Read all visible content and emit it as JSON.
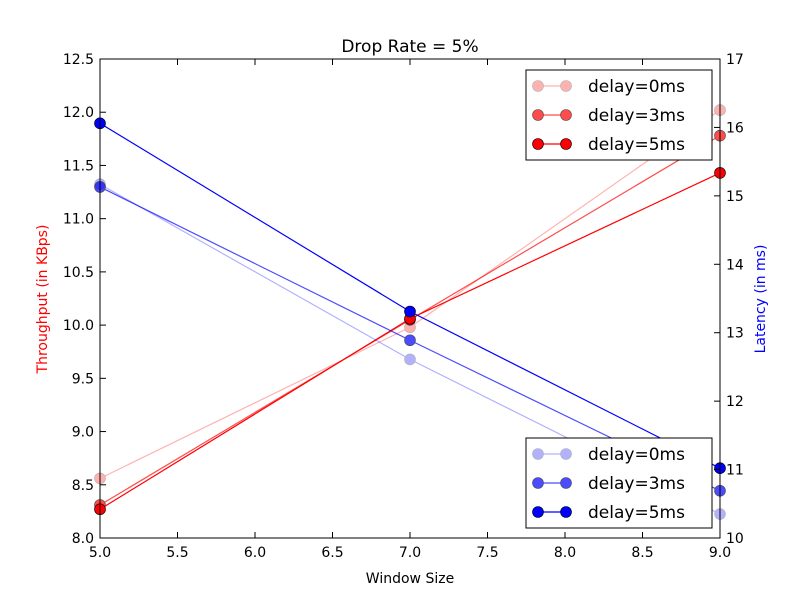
{
  "chart_data": {
    "type": "line",
    "title": "Drop Rate = 5%",
    "xlabel": "Window Size",
    "ylabel_left": "Throughput (in KBps)",
    "ylabel_right": "Latency (in ms)",
    "xlim": [
      5.0,
      9.0
    ],
    "ylim_left": [
      8.0,
      12.5
    ],
    "ylim_right": [
      10,
      17
    ],
    "xticks": [
      "5.0",
      "5.5",
      "6.0",
      "6.5",
      "7.0",
      "7.5",
      "8.0",
      "8.5",
      "9.0"
    ],
    "yticks_left": [
      "8.0",
      "8.5",
      "9.0",
      "9.5",
      "10.0",
      "10.5",
      "11.0",
      "11.5",
      "12.0",
      "12.5"
    ],
    "yticks_right": [
      "10",
      "11",
      "12",
      "13",
      "14",
      "15",
      "16",
      "17"
    ],
    "x": [
      5,
      7,
      9
    ],
    "throughput_series": [
      {
        "name": "delay=0ms",
        "values": [
          8.56,
          9.98,
          12.02
        ],
        "color": "#ff0000",
        "opacity": 0.3
      },
      {
        "name": "delay=3ms",
        "values": [
          8.31,
          10.05,
          11.78
        ],
        "color": "#ff0000",
        "opacity": 0.7
      },
      {
        "name": "delay=5ms",
        "values": [
          8.27,
          10.06,
          11.43
        ],
        "color": "#ff0000",
        "opacity": 1.0
      }
    ],
    "latency_series": [
      {
        "name": "delay=0ms",
        "values": [
          15.17,
          12.61,
          10.35
        ],
        "color": "#0000ff",
        "opacity": 0.3
      },
      {
        "name": "delay=3ms",
        "values": [
          15.13,
          12.89,
          10.69
        ],
        "color": "#0000ff",
        "opacity": 0.7
      },
      {
        "name": "delay=5ms",
        "values": [
          16.06,
          13.31,
          11.02
        ],
        "color": "#0000ff",
        "opacity": 1.0
      }
    ],
    "legend_throughput_position": "upper-right",
    "legend_latency_position": "lower-right",
    "grid": false
  }
}
